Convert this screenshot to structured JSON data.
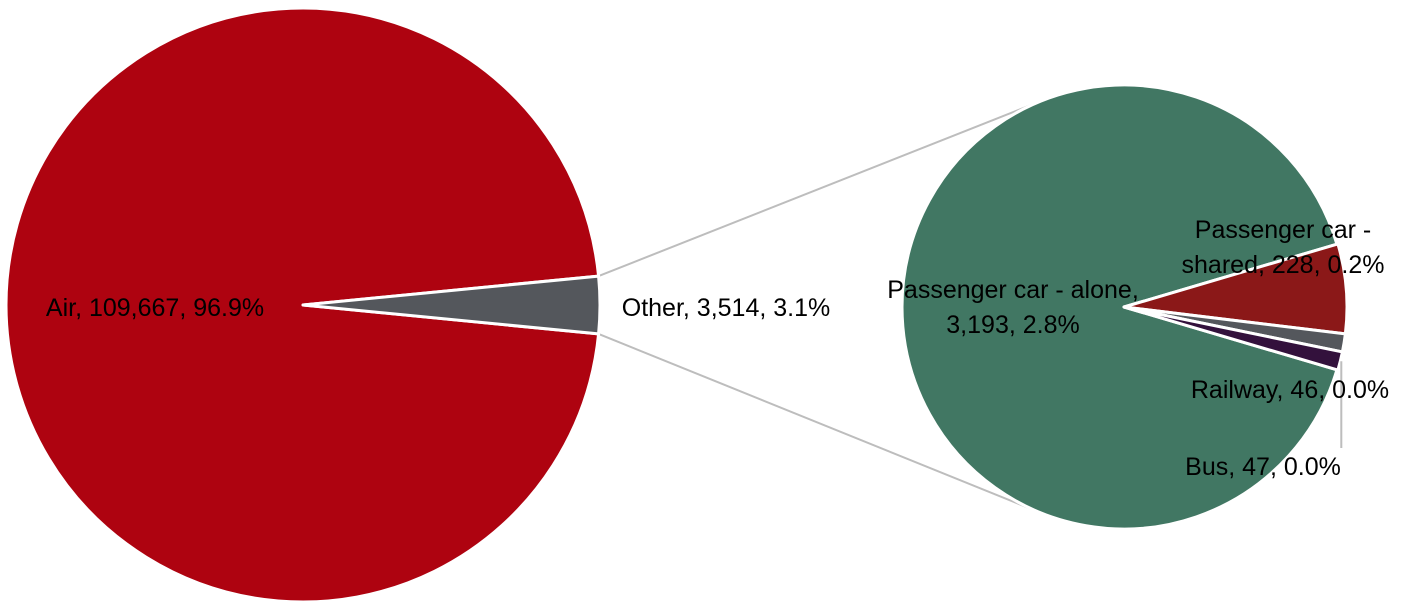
{
  "chart_data": [
    {
      "type": "pie",
      "title": "",
      "slices": [
        {
          "label": "Air",
          "value": 109667,
          "percent": "96.9%",
          "color": "#ae0310",
          "data_label": "Air, 109,667, 96.9%"
        },
        {
          "label": "Other",
          "value": 3514,
          "percent": "3.1%",
          "color": "#54575c",
          "data_label": "Other, 3,514, 3.1%"
        }
      ]
    },
    {
      "type": "pie",
      "title": "",
      "breakdown_of": "Other",
      "slices": [
        {
          "label": "Passenger car - alone",
          "value": 3193,
          "percent": "2.8%",
          "color": "#417763",
          "data_label_lines": [
            "Passenger car - alone,",
            "3,193, 2.8%"
          ]
        },
        {
          "label": "Passenger car - shared",
          "value": 228,
          "percent": "0.2%",
          "color": "#8b1818",
          "data_label_lines": [
            "Passenger car -",
            "shared, 228, 0.2%"
          ]
        },
        {
          "label": "Railway",
          "value": 46,
          "percent": "0.0%",
          "color": "#54575c",
          "data_label_lines": [
            "Railway, 46, 0.0%"
          ]
        },
        {
          "label": "Bus",
          "value": 47,
          "percent": "0.0%",
          "color": "#33113c",
          "data_label_lines": [
            "Bus, 47, 0.0%"
          ]
        }
      ]
    }
  ]
}
